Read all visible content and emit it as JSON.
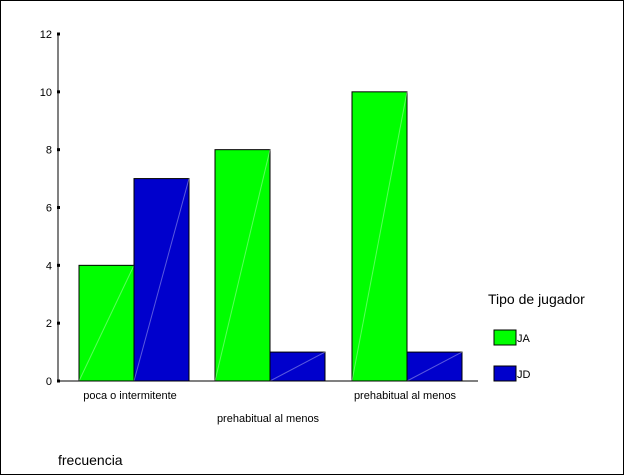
{
  "chart_data": {
    "type": "bar",
    "categories": [
      "poca o intermitente",
      "prehabitual al menos",
      "prehabitual al menos"
    ],
    "series": [
      {
        "name": "JA",
        "values": [
          4,
          8,
          10
        ],
        "color": "#00ff00"
      },
      {
        "name": "JD",
        "values": [
          7,
          1,
          1
        ],
        "color": "#0000cc"
      }
    ],
    "xlabel": "frecuencia",
    "ylabel": "",
    "ylim": [
      0,
      12
    ],
    "yticks": [
      0,
      2,
      4,
      6,
      8,
      10,
      12
    ],
    "legend": {
      "title": "Tipo de jugador",
      "position": "right"
    },
    "grid": false
  }
}
